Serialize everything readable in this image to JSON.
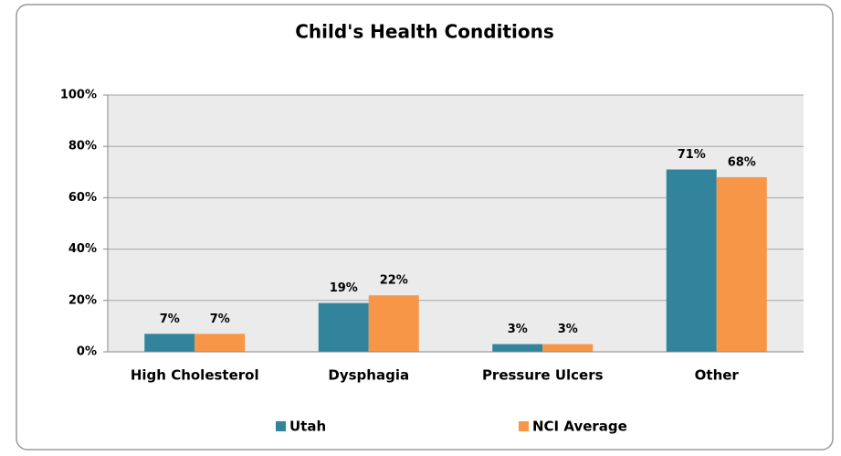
{
  "chart_data": {
    "type": "bar",
    "title": "Child's Health Conditions",
    "categories": [
      "High Cholesterol",
      "Dysphagia",
      "Pressure Ulcers",
      "Other"
    ],
    "series": [
      {
        "name": "Utah",
        "color": "#31849b",
        "values": [
          7,
          19,
          3,
          71
        ],
        "value_labels": [
          "7%",
          "19%",
          "3%",
          "71%"
        ]
      },
      {
        "name": "NCI Average",
        "color": "#f79646",
        "values": [
          7,
          22,
          3,
          68
        ],
        "value_labels": [
          "7%",
          "22%",
          "3%",
          "68%"
        ]
      }
    ],
    "ylim": [
      0,
      100
    ],
    "yticks": [
      {
        "value": 0,
        "label": "0%"
      },
      {
        "value": 20,
        "label": "20%"
      },
      {
        "value": 40,
        "label": "40%"
      },
      {
        "value": 60,
        "label": "60%"
      },
      {
        "value": 80,
        "label": "80%"
      },
      {
        "value": 100,
        "label": "100%"
      }
    ],
    "grid": true,
    "legend": "bottom"
  }
}
